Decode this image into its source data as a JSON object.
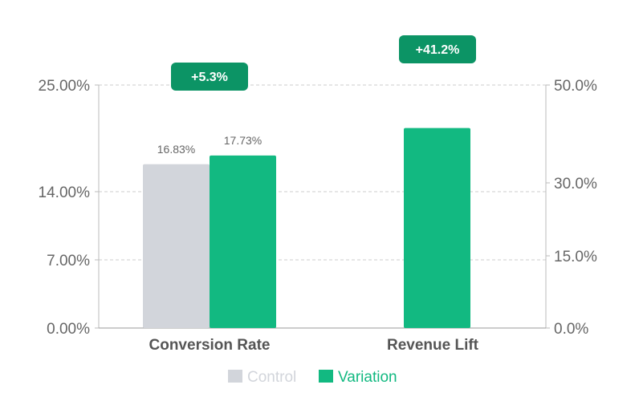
{
  "chart_data": {
    "type": "bar",
    "categories": [
      "Conversion Rate",
      "Revenue Lift"
    ],
    "left_axis": {
      "ticks": [
        "0.00%",
        "7.00%",
        "14.00%",
        "25.00%"
      ],
      "tick_values": [
        0,
        7,
        14,
        25
      ],
      "range": [
        0,
        25
      ]
    },
    "right_axis": {
      "ticks": [
        "0.0%",
        "15.0%",
        "30.0%",
        "50.0%"
      ],
      "tick_values": [
        0,
        15,
        30,
        50
      ],
      "range": [
        0,
        50
      ]
    },
    "grid": true,
    "series": [
      {
        "name": "Control",
        "color": "#d2d5db",
        "values": [
          16.83,
          null
        ],
        "labels": [
          "16.83%",
          ""
        ]
      },
      {
        "name": "Variation",
        "color": "#12b981",
        "values": [
          17.73,
          41.2
        ],
        "labels": [
          "17.73%",
          ""
        ]
      }
    ],
    "value_axes": [
      "left",
      "right"
    ],
    "badges": [
      "+5.3%",
      "+41.2%"
    ],
    "badge_color": "#0c9465",
    "legend_position": "bottom"
  }
}
